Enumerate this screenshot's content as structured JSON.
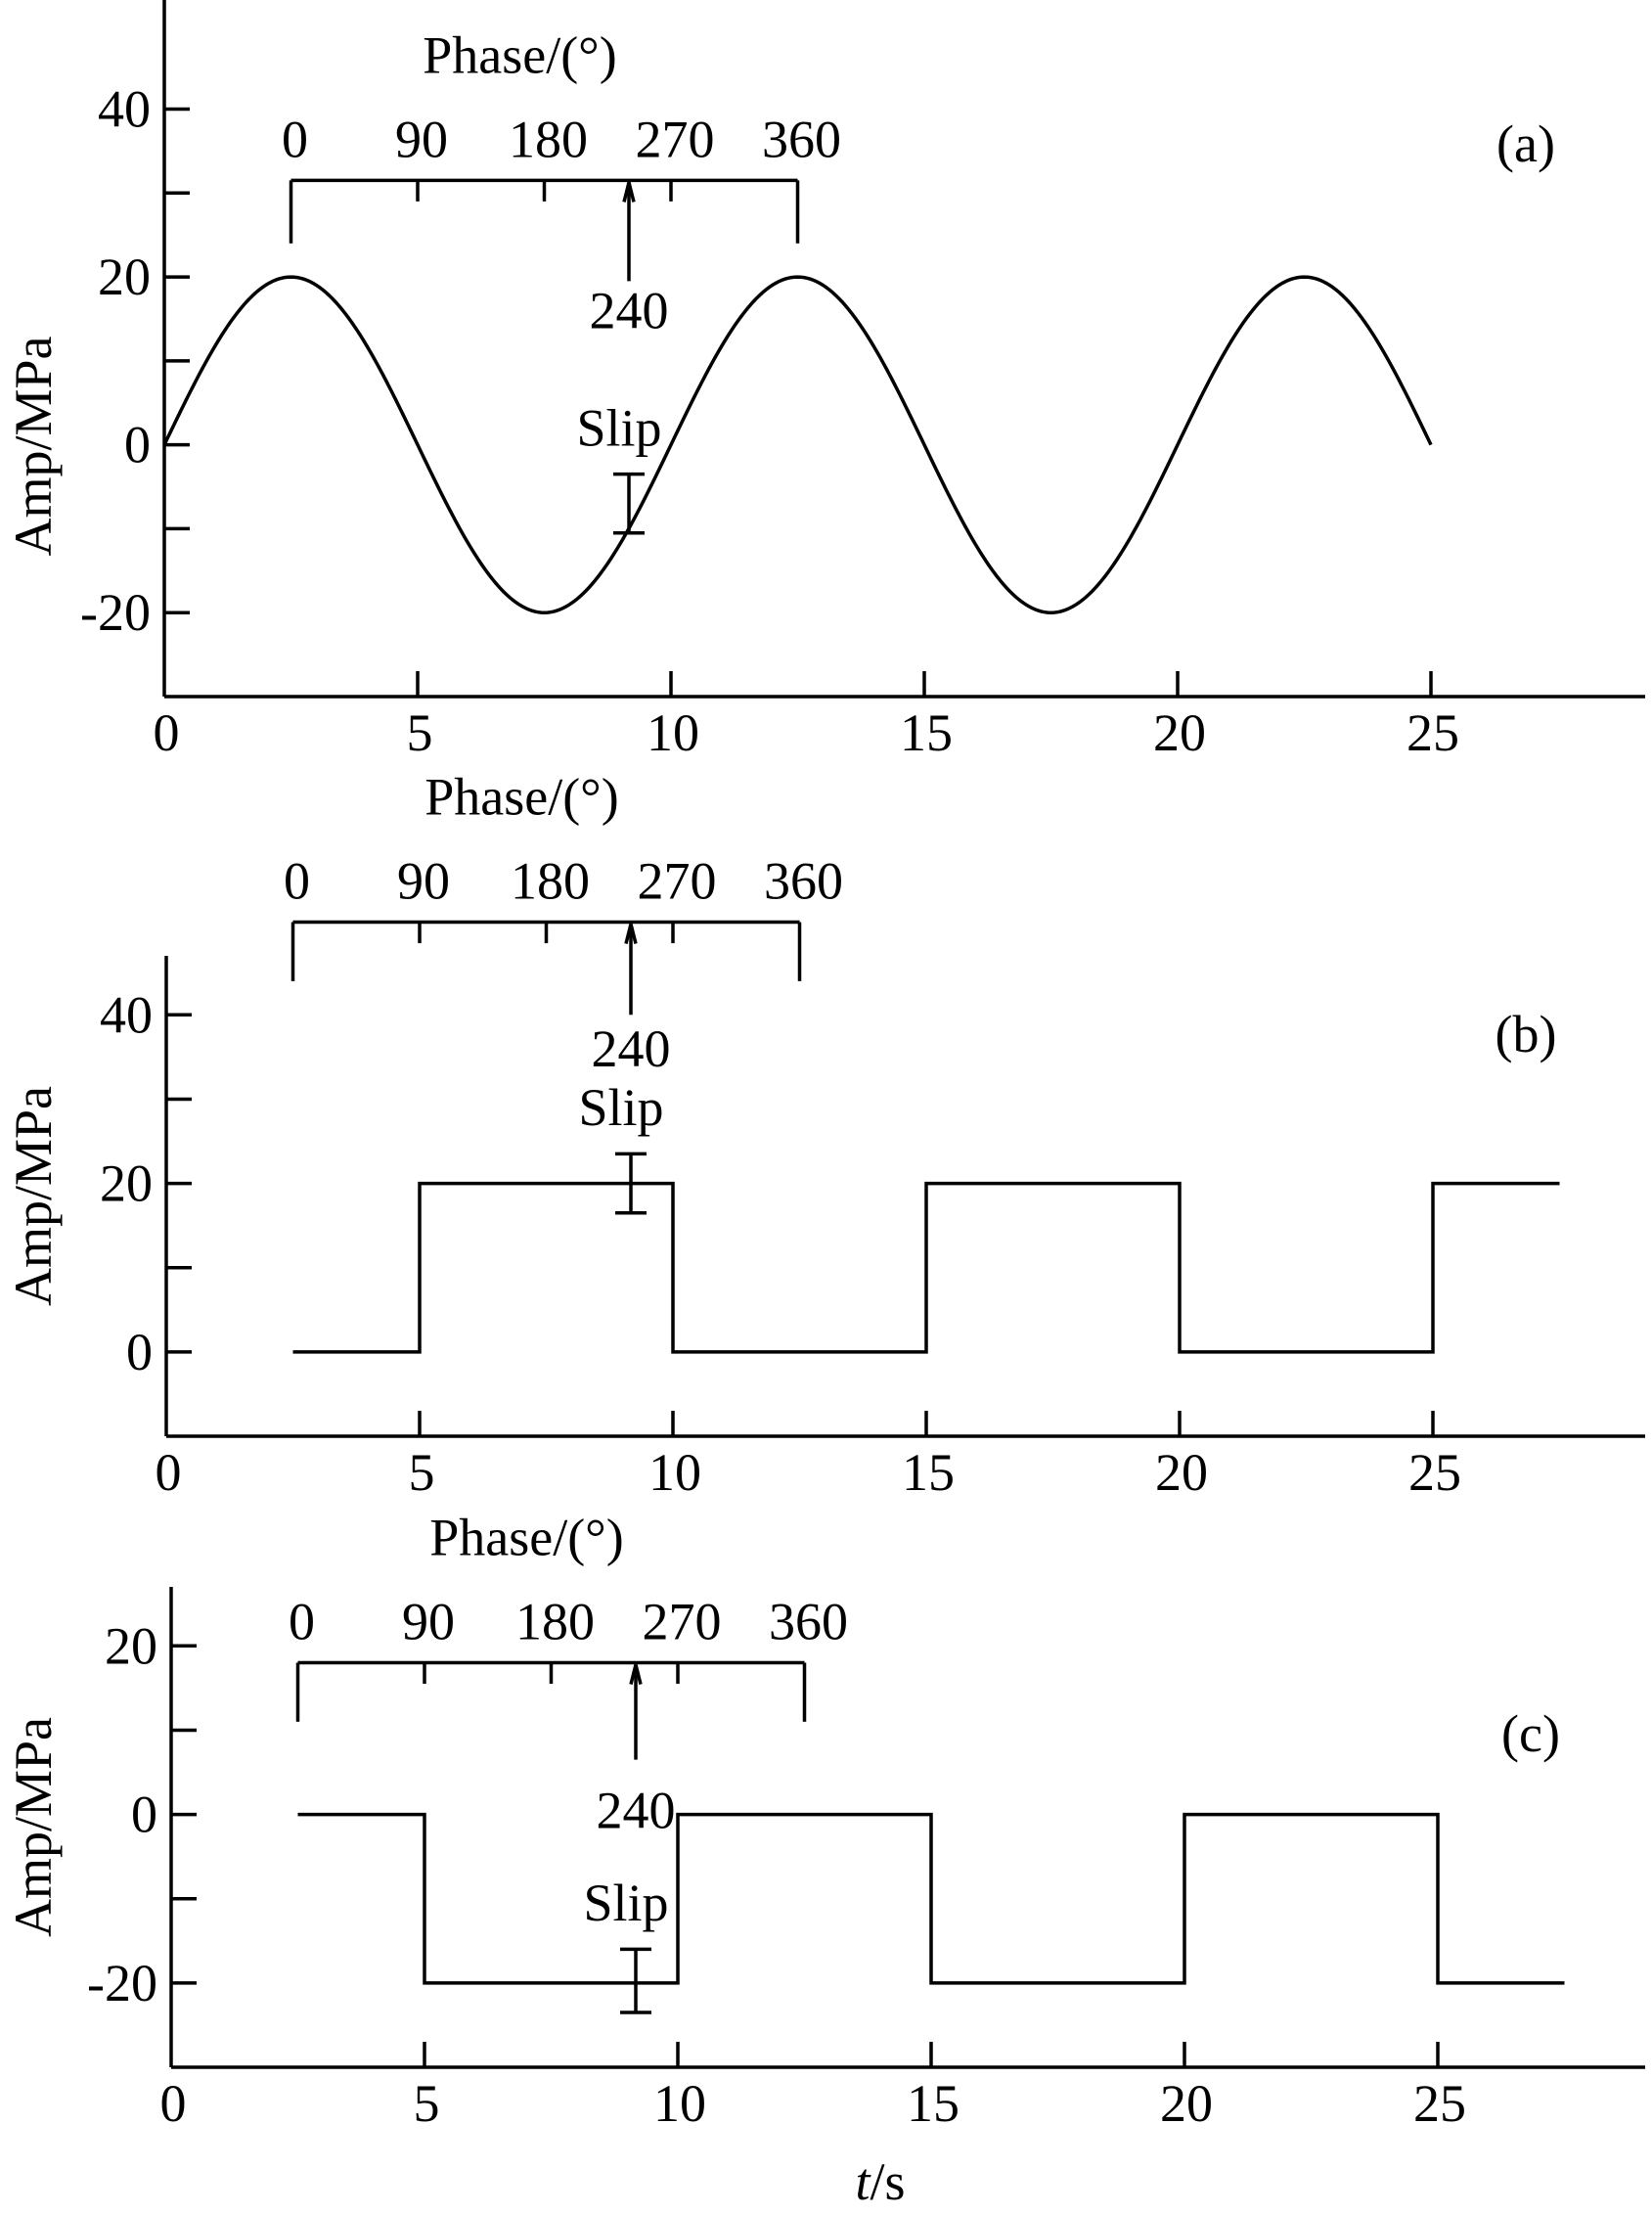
{
  "chart_data": [
    {
      "panel_label": "(a)",
      "type": "line",
      "waveform": "sine",
      "ylabel": "Amp/MPa",
      "xlim": [
        0,
        29
      ],
      "ylim": [
        -30,
        53
      ],
      "xticks": [
        0,
        5,
        10,
        15,
        20,
        25
      ],
      "yticks": [
        -20,
        0,
        20,
        40
      ],
      "yminor": [
        -10,
        10,
        30
      ],
      "series": [
        {
          "amplitude": 20,
          "period": 10,
          "x_start": 0,
          "x_end": 25,
          "x": [
            0,
            2.5,
            7.5,
            12.5,
            17.5,
            22.5,
            25
          ],
          "y": [
            0,
            20,
            -20,
            20,
            -20,
            20,
            0
          ]
        }
      ],
      "phase_scale": {
        "title": "Phase/(°)",
        "labels": [
          "0",
          "90",
          "180",
          "270",
          "360"
        ],
        "t_start": 2.5,
        "t_end": 12.5,
        "bar_y": 31.5,
        "drop_y": 24,
        "tick_y": 29,
        "marker_label": "240",
        "marker_t": 9.17,
        "marker_label_y": 16,
        "marker_line_bottom": 19.5
      },
      "slip": {
        "label": "Slip",
        "t": 9.17,
        "y_top": -3.5,
        "y_bottom": -10.5,
        "label_y": 2
      }
    },
    {
      "panel_label": "(b)",
      "type": "line",
      "waveform": "square",
      "ylabel": "Amp/MPa",
      "xlim": [
        0,
        29
      ],
      "ylim": [
        -10,
        47
      ],
      "xticks": [
        0,
        5,
        10,
        15,
        20,
        25
      ],
      "yticks": [
        0,
        20,
        40
      ],
      "yminor": [
        10,
        30
      ],
      "series": [
        {
          "x": [
            2.5,
            5,
            5,
            10,
            10,
            15,
            15,
            20,
            20,
            25,
            25,
            27.5
          ],
          "y": [
            0,
            0,
            20,
            20,
            0,
            0,
            20,
            20,
            0,
            0,
            20,
            20
          ]
        }
      ],
      "phase_scale": {
        "title": "Phase/(°)",
        "labels": [
          "0",
          "90",
          "180",
          "270",
          "360"
        ],
        "t_start": 2.5,
        "t_end": 12.5,
        "bar_y": 51,
        "drop_y": 44,
        "tick_y": 48.5,
        "marker_label": "240",
        "marker_t": 9.17,
        "marker_label_y": 36,
        "marker_line_bottom": 40
      },
      "slip": {
        "label": "Slip",
        "t": 9.17,
        "y_top": 23.5,
        "y_bottom": 16.5,
        "label_y": 29
      }
    },
    {
      "panel_label": "(c)",
      "type": "line",
      "waveform": "square",
      "ylabel": "Amp/MPa",
      "xlim": [
        0,
        29
      ],
      "ylim": [
        -30,
        27
      ],
      "xticks": [
        0,
        5,
        10,
        15,
        20,
        25
      ],
      "yticks": [
        -20,
        0,
        20
      ],
      "yminor": [
        -10,
        10
      ],
      "series": [
        {
          "x": [
            2.5,
            5,
            5,
            10,
            10,
            15,
            15,
            20,
            20,
            25,
            25,
            27.5
          ],
          "y": [
            0,
            0,
            -20,
            -20,
            0,
            0,
            -20,
            -20,
            0,
            0,
            -20,
            -20
          ]
        }
      ],
      "phase_scale": {
        "title": "Phase/(°)",
        "labels": [
          "0",
          "90",
          "180",
          "270",
          "360"
        ],
        "t_start": 2.5,
        "t_end": 12.5,
        "bar_y": 18,
        "drop_y": 11,
        "tick_y": 15.5,
        "marker_label": "240",
        "marker_t": 9.17,
        "marker_label_y": 0.5,
        "marker_line_bottom": 6.5
      },
      "slip": {
        "label": "Slip",
        "t": 9.17,
        "y_top": -16,
        "y_bottom": -23.5,
        "label_y": -10.5
      }
    }
  ],
  "xlabel_italic": "t",
  "xlabel_unit": "/s"
}
